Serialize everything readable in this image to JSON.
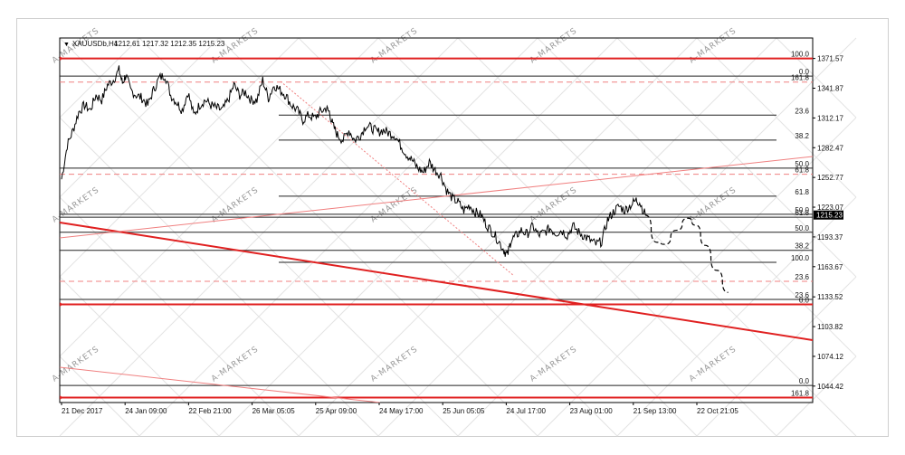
{
  "header": {
    "symbol": "XAUUSDb,H4",
    "ohlc": "1212.61 1217.32 1212.35 1215.23"
  },
  "watermark": {
    "text": "A-MARKETS"
  },
  "colors": {
    "candle": "#000000",
    "fib_red": "#e02020",
    "fib_pink": "#f08080",
    "grid": "#c0c0c0",
    "current_price_bg": "#000000"
  },
  "chart_data": {
    "type": "line",
    "title": "",
    "xlabel": "",
    "ylabel": "",
    "ylim": [
      1028,
      1392
    ],
    "y_ticks": [
      1371.57,
      1341.87,
      1312.17,
      1282.47,
      1252.77,
      1223.07,
      1193.37,
      1163.67,
      1133.52,
      1103.82,
      1074.12,
      1044.42
    ],
    "current_price": 1215.23,
    "x_tick_labels": [
      "21 Dec 2017",
      "24 Jan 09:00",
      "22 Feb 21:00",
      "26 Mar 05:05",
      "25 Apr 09:00",
      "24 May 17:00",
      "25 Jun 05:05",
      "24 Jul 17:00",
      "23 Aug 01:00",
      "21 Sep 13:00",
      "22 Oct 21:05"
    ],
    "price_series": {
      "name": "",
      "points": [
        [
          0.0,
          1251
        ],
        [
          0.5,
          1285
        ],
        [
          1.0,
          1300
        ],
        [
          1.5,
          1318
        ],
        [
          2.0,
          1325
        ],
        [
          2.5,
          1320
        ],
        [
          3.0,
          1335
        ],
        [
          3.5,
          1330
        ],
        [
          4.0,
          1345
        ],
        [
          4.5,
          1350
        ],
        [
          5.0,
          1360
        ],
        [
          5.3,
          1347
        ],
        [
          5.6,
          1355
        ],
        [
          6.0,
          1340
        ],
        [
          6.5,
          1335
        ],
        [
          7.0,
          1332
        ],
        [
          7.5,
          1325
        ],
        [
          8.0,
          1340
        ],
        [
          8.5,
          1352
        ],
        [
          9.0,
          1355
        ],
        [
          9.5,
          1335
        ],
        [
          10.0,
          1328
        ],
        [
          10.5,
          1320
        ],
        [
          11.0,
          1338
        ],
        [
          11.5,
          1315
        ],
        [
          12.0,
          1325
        ],
        [
          12.5,
          1330
        ],
        [
          13.0,
          1325
        ],
        [
          13.5,
          1322
        ],
        [
          14.0,
          1320
        ],
        [
          14.5,
          1330
        ],
        [
          15.0,
          1345
        ],
        [
          15.5,
          1335
        ],
        [
          16.0,
          1338
        ],
        [
          16.5,
          1330
        ],
        [
          17.0,
          1330
        ],
        [
          17.5,
          1350
        ],
        [
          18.0,
          1332
        ],
        [
          18.5,
          1345
        ],
        [
          19.0,
          1340
        ],
        [
          19.5,
          1335
        ],
        [
          20.0,
          1325
        ],
        [
          20.5,
          1320
        ],
        [
          21.0,
          1310
        ],
        [
          21.5,
          1315
        ],
        [
          22.0,
          1312
        ],
        [
          22.5,
          1318
        ],
        [
          23.0,
          1322
        ],
        [
          23.3,
          1318
        ],
        [
          23.6,
          1305
        ],
        [
          24.0,
          1295
        ],
        [
          24.5,
          1290
        ],
        [
          25.0,
          1300
        ],
        [
          25.5,
          1290
        ],
        [
          26.0,
          1295
        ],
        [
          26.5,
          1305
        ],
        [
          27.0,
          1302
        ],
        [
          27.5,
          1298
        ],
        [
          28.0,
          1300
        ],
        [
          28.5,
          1297
        ],
        [
          29.0,
          1295
        ],
        [
          29.5,
          1285
        ],
        [
          30.0,
          1276
        ],
        [
          30.5,
          1270
        ],
        [
          31.0,
          1262
        ],
        [
          31.5,
          1258
        ],
        [
          32.0,
          1268
        ],
        [
          32.5,
          1260
        ],
        [
          33.0,
          1255
        ],
        [
          33.5,
          1240
        ],
        [
          34.0,
          1232
        ],
        [
          34.5,
          1228
        ],
        [
          35.0,
          1220
        ],
        [
          35.5,
          1225
        ],
        [
          36.0,
          1218
        ],
        [
          36.5,
          1215
        ],
        [
          37.0,
          1205
        ],
        [
          37.5,
          1198
        ],
        [
          38.0,
          1190
        ],
        [
          38.5,
          1180
        ],
        [
          38.8,
          1175
        ],
        [
          39.1,
          1190
        ],
        [
          39.5,
          1194
        ],
        [
          40.0,
          1200
        ],
        [
          40.5,
          1196
        ],
        [
          41.0,
          1204
        ],
        [
          41.5,
          1195
        ],
        [
          42.0,
          1198
        ],
        [
          42.5,
          1202
        ],
        [
          43.0,
          1197
        ],
        [
          43.5,
          1200
        ],
        [
          44.0,
          1195
        ],
        [
          44.5,
          1204
        ],
        [
          45.0,
          1198
        ],
        [
          45.5,
          1194
        ],
        [
          46.0,
          1190
        ],
        [
          46.5,
          1186
        ],
        [
          47.0,
          1189
        ],
        [
          47.5,
          1210
        ],
        [
          48.0,
          1218
        ],
        [
          48.5,
          1224
        ],
        [
          49.0,
          1220
        ],
        [
          49.5,
          1225
        ],
        [
          50.0,
          1230
        ],
        [
          50.3,
          1228
        ],
        [
          50.8,
          1215
        ]
      ]
    },
    "projection_series": {
      "name": "",
      "points": [
        [
          50.8,
          1215
        ],
        [
          51.8,
          1188
        ],
        [
          52.5,
          1186
        ],
        [
          53.5,
          1200
        ],
        [
          54.5,
          1212
        ],
        [
          55.2,
          1205
        ],
        [
          56.0,
          1185
        ],
        [
          57.0,
          1160
        ],
        [
          58.0,
          1138
        ]
      ]
    },
    "fib_levels": [
      {
        "value": 1371.57,
        "label": "100.0",
        "style": "red-solid"
      },
      {
        "value": 1348,
        "label": "161.8",
        "style": "pink-dashed"
      },
      {
        "value": 1354,
        "label": "0.0",
        "style": "black"
      },
      {
        "value": 1315,
        "label": "23.6",
        "style": "black"
      },
      {
        "value": 1290,
        "label": "38.2",
        "style": "black"
      },
      {
        "value": 1262,
        "label": "50.0",
        "style": "black"
      },
      {
        "value": 1256,
        "label": "61.8",
        "style": "pink-dashed"
      },
      {
        "value": 1234,
        "label": "61.8",
        "style": "black"
      },
      {
        "value": 1216,
        "label": "50.0",
        "style": "black"
      },
      {
        "value": 1213,
        "label": "61.8",
        "style": "black"
      },
      {
        "value": 1198,
        "label": "50.0",
        "style": "black"
      },
      {
        "value": 1180,
        "label": "38.2",
        "style": "black"
      },
      {
        "value": 1168,
        "label": "100.0",
        "style": "black"
      },
      {
        "value": 1149,
        "label": "23.6",
        "style": "pink-dashed"
      },
      {
        "value": 1131,
        "label": "23.6",
        "style": "black"
      },
      {
        "value": 1126,
        "label": "0.0",
        "style": "red-solid"
      },
      {
        "value": 1045,
        "label": "0.0",
        "style": "black"
      },
      {
        "value": 1033,
        "label": "161.8",
        "style": "red-solid"
      }
    ]
  }
}
